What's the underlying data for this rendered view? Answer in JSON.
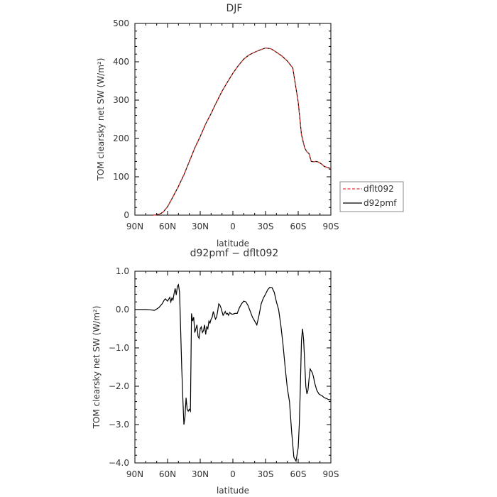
{
  "chart_data": [
    {
      "type": "line",
      "title": "DJF",
      "xlabel": "latitude",
      "ylabel": "TOM clearsky net SW (W/m²)",
      "xlim": [
        90,
        -90
      ],
      "ylim": [
        0,
        500
      ],
      "xticks": [
        90,
        60,
        30,
        0,
        -30,
        -60,
        -90
      ],
      "xtick_labels": [
        "90N",
        "60N",
        "30N",
        "0",
        "30S",
        "60S",
        "90S"
      ],
      "yticks": [
        0,
        100,
        200,
        300,
        400,
        500
      ],
      "ytick_labels": [
        "0",
        "100",
        "200",
        "300",
        "400",
        "500"
      ],
      "grid": false,
      "legend": "right",
      "series": [
        {
          "name": "dflt092",
          "color": "#e8352b",
          "dash": "dashed",
          "x": [
            73,
            70,
            67,
            64,
            60,
            55,
            50,
            45,
            40,
            35,
            30,
            25,
            20,
            15,
            10,
            5,
            0,
            -5,
            -10,
            -15,
            -20,
            -25,
            -30,
            -35,
            -40,
            -45,
            -50,
            -55,
            -60,
            -63,
            -66,
            -68,
            -70,
            -72,
            -74,
            -76,
            -78,
            -80,
            -82,
            -84,
            -86,
            -88,
            -90
          ],
          "y": [
            0,
            1,
            3,
            8,
            22,
            48,
            75,
            105,
            140,
            175,
            205,
            238,
            265,
            295,
            323,
            347,
            370,
            390,
            407,
            418,
            425,
            431,
            436,
            434,
            425,
            415,
            402,
            384,
            295,
            210,
            175,
            165,
            160,
            140,
            139,
            140,
            139,
            136,
            132,
            127,
            125,
            123,
            122
          ]
        },
        {
          "name": "d92pmf",
          "color": "#000000",
          "dash": "solid",
          "x": [
            73,
            70,
            67,
            64,
            60,
            55,
            50,
            45,
            40,
            35,
            30,
            25,
            20,
            15,
            10,
            5,
            0,
            -5,
            -10,
            -15,
            -20,
            -25,
            -30,
            -35,
            -40,
            -45,
            -50,
            -55,
            -60,
            -63,
            -66,
            -68,
            -70,
            -72,
            -74,
            -76,
            -78,
            -80,
            -82,
            -84,
            -86,
            -88,
            -90
          ],
          "y": [
            0,
            1,
            3,
            8,
            22,
            48,
            75,
            105,
            140,
            175,
            205,
            238,
            265,
            295,
            323,
            347,
            370,
            390,
            407,
            418,
            425,
            431,
            436,
            434,
            425,
            415,
            402,
            384,
            295,
            210,
            175,
            165,
            160,
            140,
            139,
            140,
            139,
            136,
            132,
            127,
            125,
            123,
            122
          ]
        }
      ]
    },
    {
      "type": "line",
      "title": "d92pmf − dflt092",
      "xlabel": "latitude",
      "ylabel": "TOM clearsky net SW (W/m²)",
      "xlim": [
        90,
        -90
      ],
      "ylim": [
        -4.0,
        1.0
      ],
      "xticks": [
        90,
        60,
        30,
        0,
        -30,
        -60,
        -90
      ],
      "xtick_labels": [
        "90N",
        "60N",
        "30N",
        "0",
        "30S",
        "60S",
        "90S"
      ],
      "yticks": [
        1.0,
        0.0,
        -1.0,
        -2.0,
        -3.0,
        -4.0
      ],
      "ytick_labels": [
        "1.0",
        "0.0",
        "−1.0",
        "−2.0",
        "−3.0",
        "−4.0"
      ],
      "grid": false,
      "series": [
        {
          "name": "",
          "color": "#000000",
          "dash": "solid",
          "x": [
            90,
            80,
            75,
            72,
            68,
            65,
            63,
            62,
            60,
            58,
            57,
            56,
            55,
            54,
            53,
            52,
            51,
            50,
            49,
            48.5,
            48,
            47,
            46,
            45,
            44,
            43,
            42,
            41,
            40,
            39,
            38,
            37,
            36,
            35,
            34,
            33,
            32,
            31,
            30,
            29,
            28,
            27,
            26,
            25,
            24,
            23,
            22,
            21,
            20,
            19,
            18,
            17,
            16,
            15,
            14,
            13,
            12,
            11,
            10,
            9,
            8,
            7,
            6,
            5,
            4,
            3,
            2,
            1,
            0,
            -2,
            -4,
            -6,
            -8,
            -10,
            -12,
            -14,
            -16,
            -18,
            -20,
            -22,
            -24,
            -26,
            -28,
            -30,
            -32,
            -34,
            -36,
            -38,
            -40,
            -42,
            -44,
            -46,
            -48,
            -50,
            -52,
            -54,
            -56,
            -58,
            -60,
            -61,
            -62,
            -63,
            -64,
            -65,
            -66,
            -67,
            -68,
            -69,
            -70,
            -71,
            -72,
            -73,
            -74,
            -75,
            -76,
            -77,
            -78,
            -79,
            -80,
            -82,
            -84,
            -86,
            -88,
            -90
          ],
          "y": [
            0.0,
            0.0,
            -0.01,
            -0.02,
            0.05,
            0.15,
            0.25,
            0.28,
            0.22,
            0.32,
            0.2,
            0.3,
            0.25,
            0.42,
            0.55,
            0.38,
            0.6,
            0.65,
            0.45,
            0.0,
            -0.5,
            -1.5,
            -2.3,
            -3.0,
            -2.8,
            -2.3,
            -2.6,
            -2.65,
            -2.6,
            -2.65,
            -0.1,
            -0.3,
            -0.2,
            -0.6,
            -0.5,
            -0.4,
            -0.7,
            -0.75,
            -0.5,
            -0.45,
            -0.6,
            -0.55,
            -0.4,
            -0.65,
            -0.45,
            -0.5,
            -0.3,
            -0.35,
            -0.25,
            -0.2,
            -0.05,
            -0.15,
            -0.25,
            -0.2,
            -0.05,
            0.15,
            0.12,
            0.05,
            -0.05,
            -0.15,
            -0.1,
            -0.05,
            -0.12,
            -0.1,
            -0.15,
            -0.08,
            -0.1,
            -0.12,
            -0.12,
            -0.1,
            -0.1,
            0.05,
            0.15,
            0.22,
            0.2,
            0.1,
            -0.05,
            -0.2,
            -0.3,
            -0.4,
            -0.15,
            0.15,
            0.3,
            0.4,
            0.52,
            0.58,
            0.57,
            0.45,
            0.2,
            0.0,
            -0.4,
            -0.9,
            -1.5,
            -2.05,
            -2.4,
            -3.2,
            -3.85,
            -3.95,
            -3.6,
            -3.0,
            -2.0,
            -0.8,
            -0.5,
            -0.8,
            -1.4,
            -2.0,
            -2.2,
            -2.1,
            -1.8,
            -1.55,
            -1.6,
            -1.65,
            -1.75,
            -1.9,
            -2.0,
            -2.1,
            -2.15,
            -2.2,
            -2.22,
            -2.25,
            -2.3,
            -2.32,
            -2.35,
            -2.35
          ]
        }
      ]
    }
  ]
}
